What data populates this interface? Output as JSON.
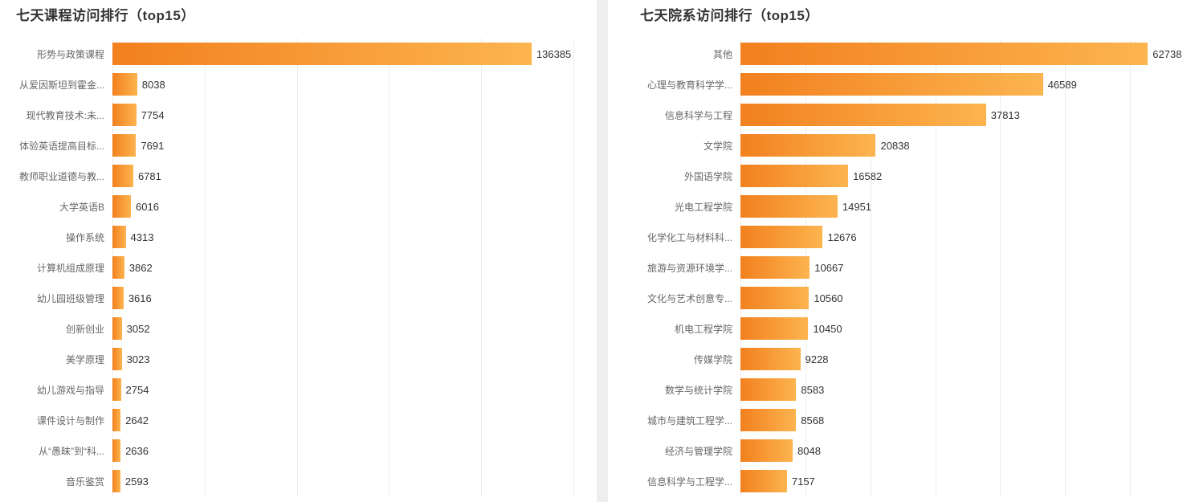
{
  "page": {
    "background": "#ffffff",
    "gutter_color": "#eeeeef",
    "grid_color": "#ececec",
    "bar_color_start": "#f2801e",
    "bar_color_end": "#fcb44f",
    "title_color": "#333333",
    "label_color": "#666666",
    "value_color": "#333333"
  },
  "chart_data": [
    {
      "type": "bar",
      "orientation": "horizontal",
      "title": "七天课程访问排行（top15）",
      "legend": "none",
      "xlabel": "",
      "ylabel": "",
      "grid": "vertical lines only",
      "xlim": [
        0,
        150000
      ],
      "grid_intervals": 5,
      "value_label_position": "right of bar end",
      "categories": [
        "形势与政策课程",
        "从爱因斯坦到霍金...",
        "现代教育技术:未...",
        "体验英语提高目标...",
        "教师职业道德与教...",
        "大学英语B",
        "操作系统",
        "计算机组成原理",
        "幼儿园班级管理",
        "创新创业",
        "美学原理",
        "幼儿游戏与指导",
        "课件设计与制作",
        "从“愚昧”到“科...",
        "音乐鉴赏"
      ],
      "values": [
        136385,
        8038,
        7754,
        7691,
        6781,
        6016,
        4313,
        3862,
        3616,
        3052,
        3023,
        2754,
        2642,
        2636,
        2593
      ]
    },
    {
      "type": "bar",
      "orientation": "horizontal",
      "title": "七天院系访问排行（top15）",
      "legend": "none",
      "xlabel": "",
      "ylabel": "",
      "grid": "vertical lines only",
      "xlim": [
        0,
        70000
      ],
      "grid_intervals": 7,
      "value_label_position": "right of bar end",
      "categories": [
        "其他",
        "心理与教育科学学...",
        "信息科学与工程",
        "文学院",
        "外国语学院",
        "光电工程学院",
        "化学化工与材料科...",
        "旅游与资源环境学...",
        "文化与艺术创意专...",
        "机电工程学院",
        "传媒学院",
        "数学与统计学院",
        "城市与建筑工程学...",
        "经济与管理学院",
        "信息科学与工程学..."
      ],
      "values": [
        62738,
        46589,
        37813,
        20838,
        16582,
        14951,
        12676,
        10667,
        10560,
        10450,
        9228,
        8583,
        8568,
        8048,
        7157
      ]
    }
  ]
}
